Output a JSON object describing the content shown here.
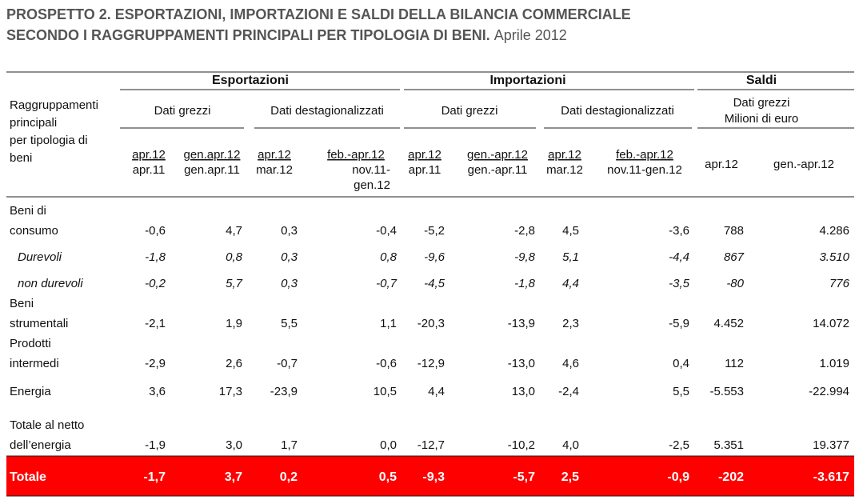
{
  "title": {
    "line1": "PROSPETTO 2. ESPORTAZIONI, IMPORTAZIONI E SALDI DELLA BILANCIA COMMERCIALE",
    "line2": "SECONDO I RAGGRUPPAMENTI PRINCIPALI PER TIPOLOGIA DI BENI.",
    "period": "Aprile 2012"
  },
  "table": {
    "row_header": [
      "Raggruppamenti",
      "principali",
      "per tipologia di",
      "beni"
    ],
    "groups": [
      "Esportazioni",
      "Importazioni",
      "Saldi"
    ],
    "subgroups": [
      [
        "Dati grezzi"
      ],
      [
        "Dati destagionalizzati"
      ],
      [
        "Dati grezzi"
      ],
      [
        "Dati destagionalizzati"
      ],
      [
        "Dati grezzi",
        "Milioni di euro"
      ]
    ],
    "columns": [
      {
        "num": "apr.12",
        "den": [
          "apr.11"
        ]
      },
      {
        "num": "gen.apr.12",
        "den": [
          "gen.apr.11"
        ]
      },
      {
        "num": "apr.12",
        "den": [
          "mar.12"
        ]
      },
      {
        "num": "feb.-apr.12",
        "den": [
          "nov.11-",
          "gen.12"
        ]
      },
      {
        "num": "apr.12",
        "den": [
          "apr.11"
        ]
      },
      {
        "num": "gen.-apr.12",
        "den": [
          "gen.-apr.11"
        ]
      },
      {
        "num": "apr.12",
        "den": [
          "mar.12"
        ]
      },
      {
        "num": "feb.-apr.12",
        "den": [
          "nov.11-gen.12"
        ]
      },
      {
        "num": "apr.12",
        "den": []
      },
      {
        "num": "gen.-apr.12",
        "den": []
      }
    ],
    "rows": [
      {
        "label": [
          "Beni di",
          "consumo"
        ],
        "values": [
          "-0,6",
          "4,7",
          "0,3",
          "-0,4",
          "-5,2",
          "-2,8",
          "4,5",
          "-3,6",
          "788",
          "4.286"
        ]
      },
      {
        "label": [
          "Durevoli"
        ],
        "italic": true,
        "values": [
          "-1,8",
          "0,8",
          "0,3",
          "0,8",
          "-9,6",
          "-9,8",
          "5,1",
          "-4,4",
          "867",
          "3.510"
        ]
      },
      {
        "label": [
          "non durevoli"
        ],
        "italic": true,
        "values": [
          "-0,2",
          "5,7",
          "0,3",
          "-0,7",
          "-4,5",
          "-1,8",
          "4,4",
          "-3,5",
          "-80",
          "776"
        ]
      },
      {
        "label": [
          "Beni",
          "strumentali"
        ],
        "values": [
          "-2,1",
          "1,9",
          "5,5",
          "1,1",
          "-20,3",
          "-13,9",
          "2,3",
          "-5,9",
          "4.452",
          "14.072"
        ]
      },
      {
        "label": [
          "Prodotti",
          "intermedi"
        ],
        "values": [
          "-2,9",
          "2,6",
          "-0,7",
          "-0,6",
          "-12,9",
          "-13,0",
          "4,6",
          "0,4",
          "112",
          "1.019"
        ]
      },
      {
        "label": [
          "Energia"
        ],
        "values": [
          "3,6",
          "17,3",
          "-23,9",
          "10,5",
          "4,4",
          "13,0",
          "-2,4",
          "5,5",
          "-5.553",
          "-22.994"
        ]
      },
      {
        "label": [
          "Totale al netto",
          "dell’energia"
        ],
        "values": [
          "-1,9",
          "3,0",
          "1,7",
          "0,0",
          "-12,7",
          "-10,2",
          "4,0",
          "-2,5",
          "5.351",
          "19.377"
        ]
      },
      {
        "label": [
          "Totale"
        ],
        "total": true,
        "values": [
          "-1,7",
          "3,7",
          "0,2",
          "0,5",
          "-9,3",
          "-5,7",
          "2,5",
          "-0,9",
          "-202",
          "-3.617"
        ]
      }
    ]
  }
}
